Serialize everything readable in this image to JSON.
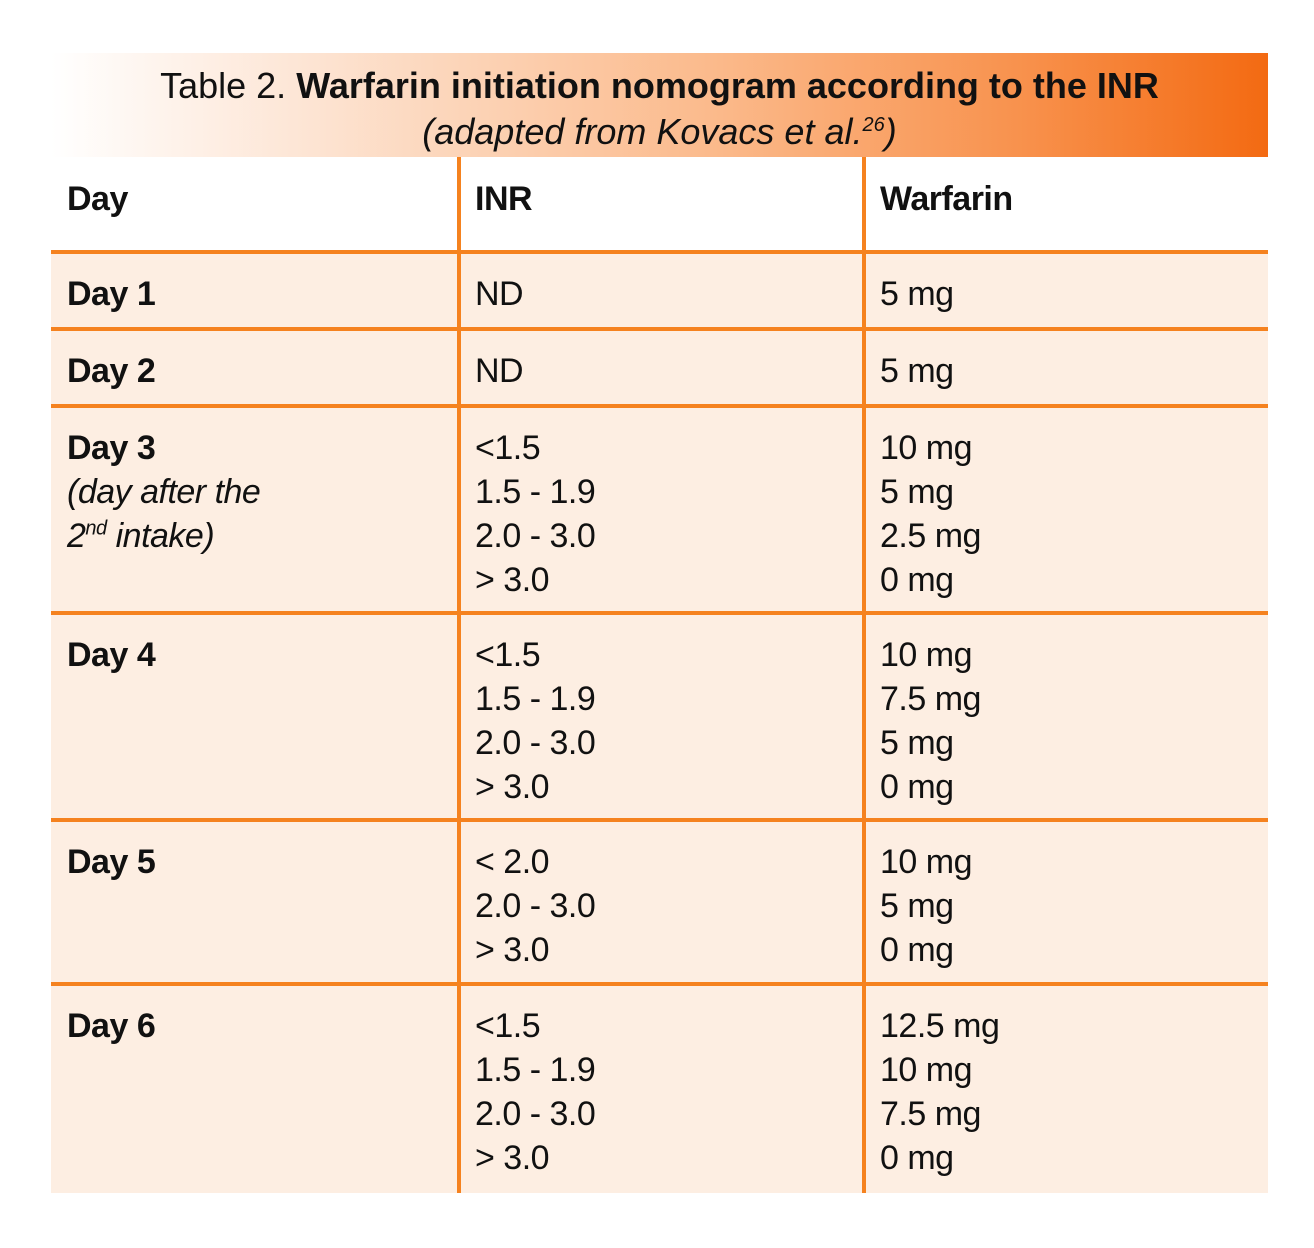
{
  "caption": {
    "prefix": "Table 2.",
    "title": "Warfarin initiation nomogram according to the INR",
    "subtitle_main": "(adapted from Kovacs et al.",
    "subtitle_ref": "26",
    "subtitle_end": ")"
  },
  "columns": [
    "Day",
    "INR",
    "Warfarin"
  ],
  "rows": [
    {
      "day": "Day 1",
      "inr": [
        "ND"
      ],
      "warfarin": [
        "5 mg"
      ]
    },
    {
      "day": "Day 2",
      "inr": [
        "ND"
      ],
      "warfarin": [
        "5 mg"
      ]
    },
    {
      "day": "Day 3",
      "note_line1": "(day after the",
      "note_line2_num": "2",
      "note_line2_sup": "nd",
      "note_line2_rest": " intake)",
      "inr": [
        "<1.5",
        "1.5 - 1.9",
        "2.0 - 3.0",
        "> 3.0"
      ],
      "warfarin": [
        "10 mg",
        "5 mg",
        "2.5 mg",
        "0 mg"
      ]
    },
    {
      "day": "Day 4",
      "inr": [
        "<1.5",
        "1.5 - 1.9",
        "2.0 - 3.0",
        "> 3.0"
      ],
      "warfarin": [
        "10 mg",
        "7.5 mg",
        "5 mg",
        "0 mg"
      ]
    },
    {
      "day": "Day 5",
      "inr": [
        "< 2.0",
        "2.0 - 3.0",
        "> 3.0"
      ],
      "warfarin": [
        "10 mg",
        "5 mg",
        "0 mg"
      ]
    },
    {
      "day": "Day 6",
      "inr": [
        "<1.5",
        "1.5 - 1.9",
        "2.0 - 3.0",
        "> 3.0"
      ],
      "warfarin": [
        "12.5 mg",
        "10 mg",
        "7.5 mg",
        "0 mg"
      ]
    }
  ],
  "colors": {
    "rule": "#f5821f",
    "row_fill": "#fdeee2",
    "caption_gradient_end": "#f36a12"
  }
}
